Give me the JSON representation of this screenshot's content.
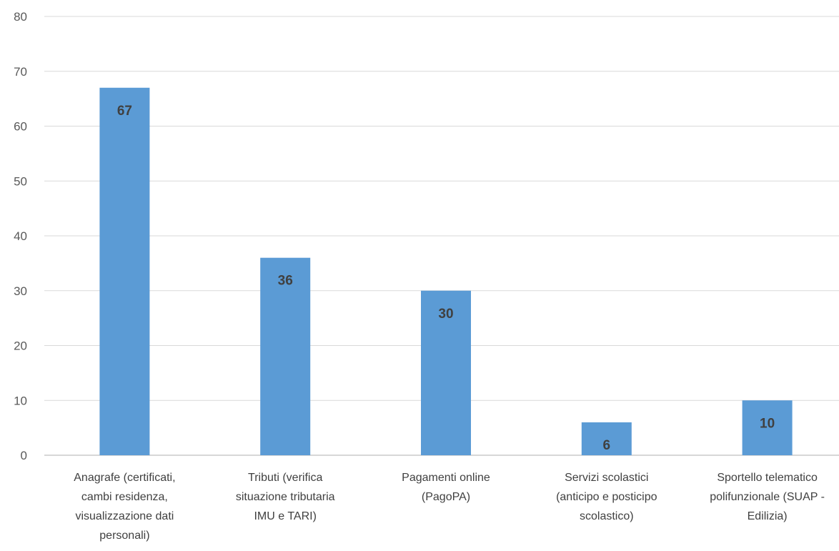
{
  "chart_data": {
    "type": "bar",
    "title": "",
    "xlabel": "",
    "ylabel": "",
    "ylim": [
      0,
      80
    ],
    "yticks": [
      0,
      10,
      20,
      30,
      40,
      50,
      60,
      70,
      80
    ],
    "grid": true,
    "legend": "none",
    "bar_color": "#5B9BD5",
    "categories": [
      [
        "Anagrafe (certificati,",
        "cambi residenza,",
        "visualizzazione dati",
        "personali)"
      ],
      [
        "Tributi (verifica",
        "situazione tributaria",
        "IMU e TARI)"
      ],
      [
        "Pagamenti online",
        "(PagoPA)"
      ],
      [
        "Servizi scolastici",
        "(anticipo e posticipo",
        "scolastico)"
      ],
      [
        "Sportello telematico",
        "polifunzionale (SUAP -",
        "Edilizia)"
      ]
    ],
    "values": [
      67,
      36,
      30,
      6,
      10
    ],
    "data_labels": [
      "67",
      "36",
      "30",
      "6",
      "10"
    ]
  }
}
